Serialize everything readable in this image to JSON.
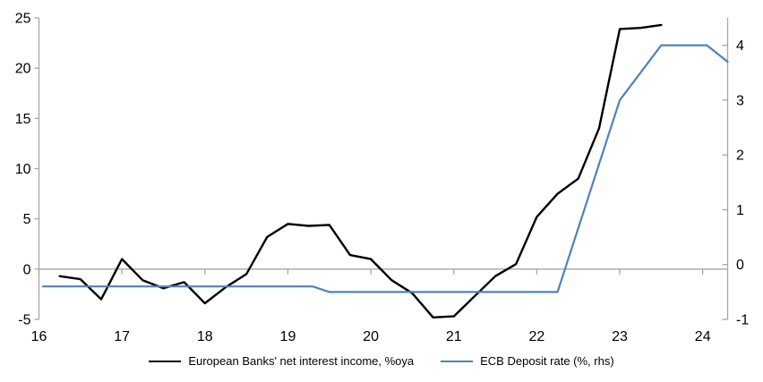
{
  "chart": {
    "background": "#ffffff",
    "axis_color": "#a6a6a6",
    "text_color": "#000000",
    "title": "",
    "legend_position": "bottom-center"
  },
  "chart_data": {
    "type": "line",
    "title": "",
    "x_range": [
      16,
      24.3
    ],
    "x_ticks": [
      16,
      17,
      18,
      19,
      20,
      21,
      22,
      23,
      24
    ],
    "x_tick_labels": [
      "16",
      "17",
      "18",
      "19",
      "20",
      "21",
      "22",
      "23",
      "24"
    ],
    "left_axis": {
      "range": [
        -5,
        25
      ],
      "ticks": [
        -5,
        0,
        5,
        10,
        15,
        20,
        25
      ],
      "tick_labels": [
        "-5",
        "0",
        "5",
        "10",
        "15",
        "20",
        "25"
      ]
    },
    "right_axis": {
      "range": [
        -1,
        4.5
      ],
      "ticks": [
        -1,
        0,
        1,
        2,
        3,
        4
      ],
      "tick_labels": [
        "-1",
        "0",
        "1",
        "2",
        "3",
        "4"
      ]
    },
    "grid": "zero-line-only",
    "series": [
      {
        "name": "European Banks' net interest income, %oya",
        "axis": "left",
        "color": "#000000",
        "width": 2.4,
        "points": [
          [
            16.25,
            -0.7
          ],
          [
            16.5,
            -1.0
          ],
          [
            16.75,
            -3.0
          ],
          [
            17.0,
            1.0
          ],
          [
            17.25,
            -1.1
          ],
          [
            17.5,
            -1.9
          ],
          [
            17.75,
            -1.3
          ],
          [
            18.0,
            -3.4
          ],
          [
            18.25,
            -1.8
          ],
          [
            18.5,
            -0.5
          ],
          [
            18.75,
            3.2
          ],
          [
            19.0,
            4.5
          ],
          [
            19.25,
            4.3
          ],
          [
            19.5,
            4.4
          ],
          [
            19.75,
            1.4
          ],
          [
            20.0,
            1.0
          ],
          [
            20.25,
            -1.1
          ],
          [
            20.5,
            -2.4
          ],
          [
            20.75,
            -4.8
          ],
          [
            21.0,
            -4.7
          ],
          [
            21.25,
            -2.7
          ],
          [
            21.5,
            -0.7
          ],
          [
            21.75,
            0.5
          ],
          [
            22.0,
            5.2
          ],
          [
            22.25,
            7.5
          ],
          [
            22.5,
            9.0
          ],
          [
            22.75,
            14.0
          ],
          [
            23.0,
            23.9
          ],
          [
            23.25,
            24.0
          ],
          [
            23.5,
            24.3
          ]
        ]
      },
      {
        "name": "ECB Deposit rate (%, rhs)",
        "axis": "right",
        "color": "#4f81bd",
        "width": 2.2,
        "points": [
          [
            16.05,
            -0.4
          ],
          [
            19.3,
            -0.4
          ],
          [
            19.5,
            -0.5
          ],
          [
            22.25,
            -0.5
          ],
          [
            23.0,
            3.0
          ],
          [
            23.5,
            4.0
          ],
          [
            24.05,
            4.0
          ],
          [
            24.3,
            3.7
          ]
        ]
      }
    ]
  }
}
